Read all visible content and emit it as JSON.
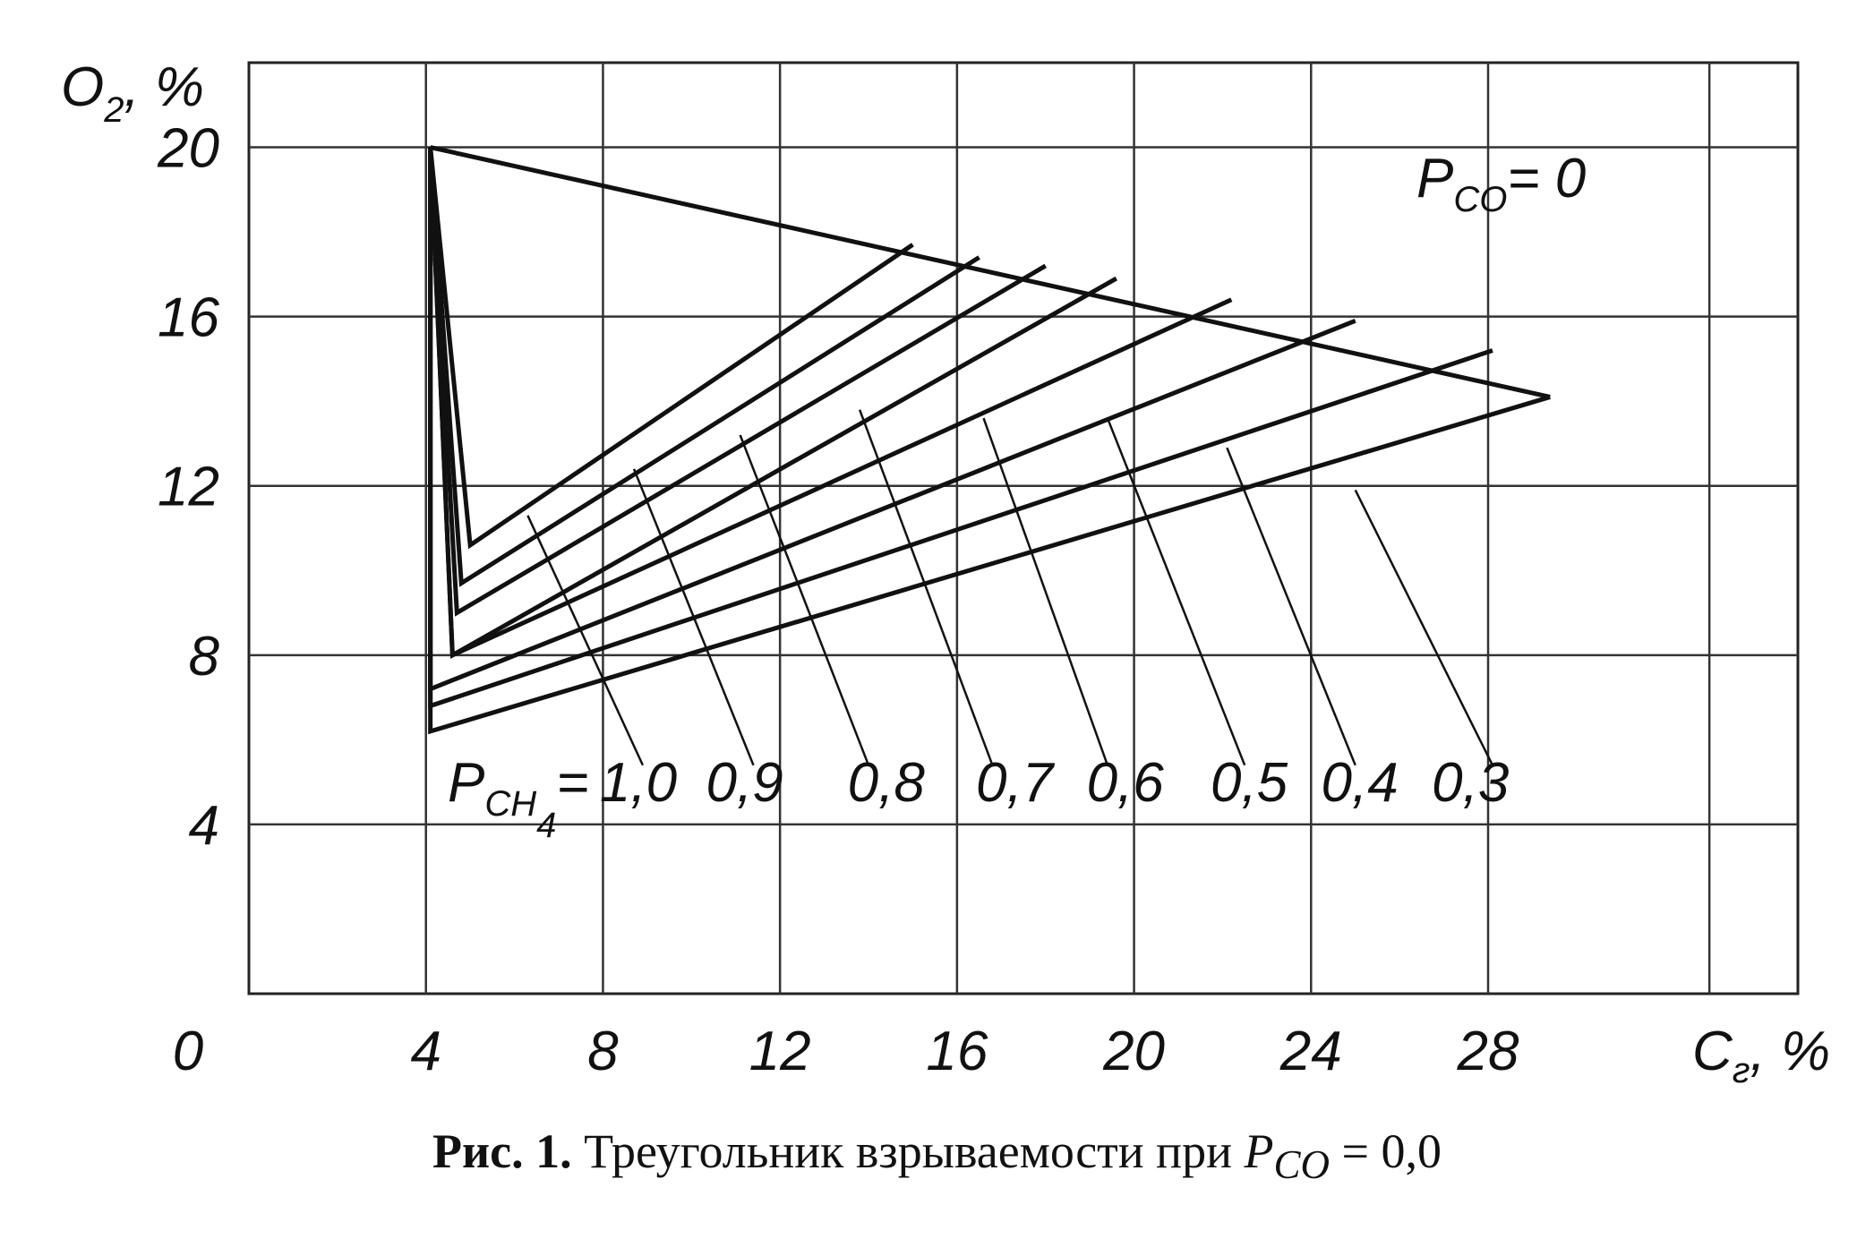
{
  "chart_data": {
    "type": "line",
    "title": "",
    "axes": {
      "y_label_main": "O",
      "y_label_sub": "2",
      "y_label_suffix": ", %",
      "x_label_main": "C",
      "x_label_sub": "г",
      "x_label_suffix": ", %",
      "origin_label": "0",
      "x_ticks": [
        "4",
        "8",
        "12",
        "16",
        "20",
        "24",
        "28"
      ],
      "y_ticks": [
        "4",
        "8",
        "12",
        "16",
        "20"
      ],
      "xlim": [
        0,
        35
      ],
      "ylim": [
        0,
        22
      ],
      "grid": true
    },
    "p_co_label": {
      "main": "P",
      "sub": "CO",
      "value": "= 0"
    },
    "p_ch4_label": {
      "main": "P",
      "sub": "CH",
      "sub2": "4",
      "eq": "="
    },
    "upper_boundary": {
      "x": [
        4.1,
        29.4
      ],
      "y": [
        20.0,
        14.1
      ]
    },
    "series": [
      {
        "name": "1,0",
        "lel": [
          4.1,
          20.0
        ],
        "tip": [
          5.0,
          10.6
        ],
        "uel": [
          15.0,
          17.7
        ],
        "label_x": 8.8
      },
      {
        "name": "0,9",
        "lel": [
          4.1,
          20.0
        ],
        "tip": [
          4.8,
          9.7
        ],
        "uel": [
          16.5,
          17.4
        ],
        "label_x": 11.2
      },
      {
        "name": "0,8",
        "lel": [
          4.1,
          20.0
        ],
        "tip": [
          4.7,
          9.0
        ],
        "uel": [
          18.0,
          17.2
        ],
        "label_x": 14.4
      },
      {
        "name": "0,7",
        "lel": [
          4.1,
          20.0
        ],
        "tip": [
          4.6,
          8.0
        ],
        "uel": [
          19.6,
          16.9
        ],
        "label_x": 17.3
      },
      {
        "name": "0,6",
        "lel": [
          4.1,
          20.0
        ],
        "tip": [
          4.6,
          8.0
        ],
        "uel": [
          22.2,
          16.4
        ],
        "label_x": 19.8
      },
      {
        "name": "0,5",
        "lel": [
          4.1,
          20.0
        ],
        "tip": [
          4.1,
          7.2
        ],
        "uel": [
          25.0,
          15.9
        ],
        "label_x": 22.6
      },
      {
        "name": "0,4",
        "lel": [
          4.1,
          20.0
        ],
        "tip": [
          4.1,
          6.8
        ],
        "uel": [
          28.1,
          15.2
        ],
        "label_x": 25.1
      },
      {
        "name": "0,3",
        "lel": [
          4.1,
          20.0
        ],
        "tip": [
          4.1,
          6.2
        ],
        "uel": [
          29.4,
          14.1
        ],
        "label_x": 27.6
      }
    ],
    "leaders": [
      {
        "label": "1,0",
        "from": [
          6.3,
          11.3
        ],
        "to": [
          8.9,
          5.4
        ]
      },
      {
        "label": "0,9",
        "from": [
          8.7,
          12.4
        ],
        "to": [
          11.4,
          5.4
        ]
      },
      {
        "label": "0,8",
        "from": [
          11.1,
          13.2
        ],
        "to": [
          14.0,
          5.4
        ]
      },
      {
        "label": "0,7",
        "from": [
          13.8,
          13.8
        ],
        "to": [
          16.8,
          5.4
        ]
      },
      {
        "label": "0,6",
        "from": [
          16.6,
          13.6
        ],
        "to": [
          19.4,
          5.4
        ]
      },
      {
        "label": "0,5",
        "from": [
          19.4,
          13.6
        ],
        "to": [
          22.5,
          5.4
        ]
      },
      {
        "label": "0,4",
        "from": [
          22.1,
          12.9
        ],
        "to": [
          25.0,
          5.4
        ]
      },
      {
        "label": "0,3",
        "from": [
          25.0,
          11.9
        ],
        "to": [
          28.1,
          5.4
        ]
      }
    ]
  },
  "caption": {
    "bold": "Рис. 1.",
    "text": " Треугольник взрываемости при ",
    "var_main": "P",
    "var_sub": "CO",
    "value": " = 0,0"
  }
}
